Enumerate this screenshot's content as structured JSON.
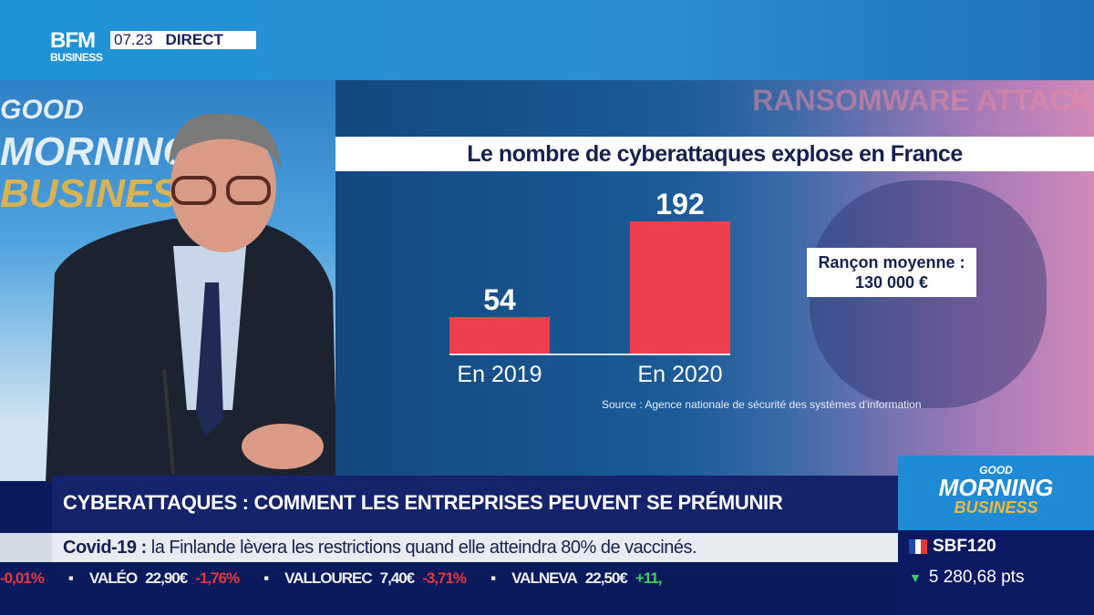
{
  "channel": {
    "logo_top": "BFM",
    "logo_bottom": "BUSINESS",
    "time": "07.23",
    "live": "DIRECT"
  },
  "studio_logo": {
    "line1": "GOOD",
    "line2": "MORNING",
    "line3": "BUSINESS"
  },
  "chart_data": {
    "type": "bar",
    "title": "Le nombre de cyberattaques explose en France",
    "categories": [
      "En 2019",
      "En 2020"
    ],
    "values": [
      54,
      192
    ],
    "ylim": [
      0,
      200
    ],
    "bar_color": "#ee3f4e",
    "annotation": "Rançon moyenne : 130 000 €",
    "annotation_line1": "Rançon moyenne :",
    "annotation_line2": "130 000 €",
    "source": "Source : Agence nationale de sécurité des systèmes d'information",
    "background_text": "RANSOMWARE ATTACK"
  },
  "headline": "CYBERATTAQUES : COMMENT LES ENTREPRISES PEUVENT SE PRÉMUNIR",
  "news": {
    "tag": "Covid-19 :",
    "text": "la Finlande lèvera les restrictions quand elle atteindra 80% de vaccinés."
  },
  "ticker": [
    {
      "name": "",
      "price": "",
      "change": "-0,01%",
      "dir": "neg"
    },
    {
      "name": "VALÉO",
      "price": "22,90€",
      "change": "-1,76%",
      "dir": "neg"
    },
    {
      "name": "VALLOUREC",
      "price": "7,40€",
      "change": "-3,71%",
      "dir": "neg"
    },
    {
      "name": "VALNEVA",
      "price": "22,50€",
      "change": "+11,",
      "dir": "pos"
    }
  ],
  "index": {
    "name": "SBF120",
    "value": "5 280,68 pts"
  },
  "colors": {
    "accent": "#1f8ad6",
    "navy": "#14236b",
    "bar": "#ee3f4e"
  }
}
